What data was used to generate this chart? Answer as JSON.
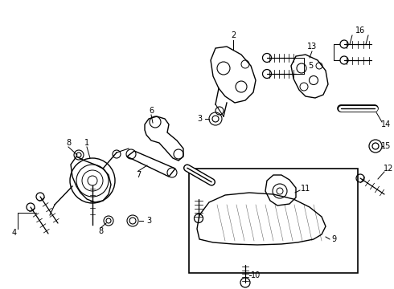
{
  "bg_color": "#ffffff",
  "line_color": "#000000",
  "figsize": [
    4.9,
    3.6
  ],
  "dpi": 100
}
